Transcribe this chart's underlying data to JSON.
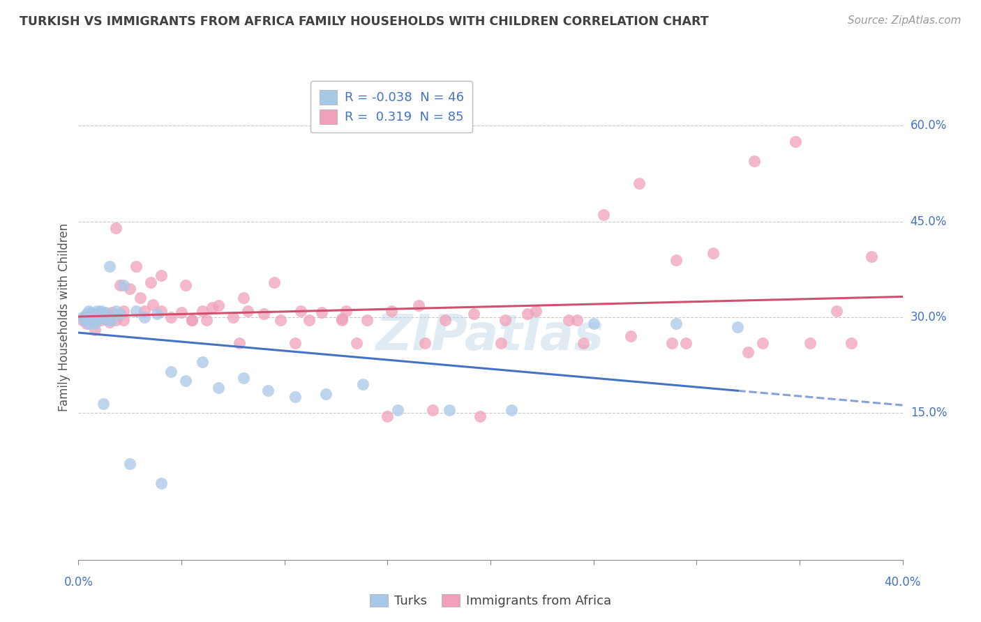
{
  "title": "TURKISH VS IMMIGRANTS FROM AFRICA FAMILY HOUSEHOLDS WITH CHILDREN CORRELATION CHART",
  "source": "Source: ZipAtlas.com",
  "ylabel": "Family Households with Children",
  "yticks_labels": [
    "60.0%",
    "45.0%",
    "30.0%",
    "15.0%"
  ],
  "ytick_vals": [
    0.6,
    0.45,
    0.3,
    0.15
  ],
  "xtick_labels_bottom": [
    "0.0%",
    "40.0%"
  ],
  "xtick_vals_bottom": [
    0.0,
    0.4
  ],
  "xlim": [
    0.0,
    0.4
  ],
  "ylim": [
    -0.08,
    0.68
  ],
  "turks_R": -0.038,
  "turks_N": 46,
  "africa_R": 0.319,
  "africa_N": 85,
  "turks_color": "#a8c8e8",
  "africa_color": "#f0a0b8",
  "turks_line_color": "#4472c4",
  "africa_line_color": "#d05070",
  "turks_line_alpha": 1.0,
  "africa_line_alpha": 1.0,
  "legend_label_turks": "Turks",
  "legend_label_africa": "Immigrants from Africa",
  "watermark": "ZIPatlas",
  "background_color": "#ffffff",
  "grid_color": "#c8c8c8",
  "title_color": "#404040",
  "axis_label_color": "#4472c4",
  "turks_x": [
    0.002,
    0.003,
    0.004,
    0.004,
    0.005,
    0.005,
    0.006,
    0.006,
    0.006,
    0.007,
    0.007,
    0.008,
    0.008,
    0.009,
    0.01,
    0.01,
    0.011,
    0.012,
    0.013,
    0.014,
    0.015,
    0.016,
    0.018,
    0.02,
    0.022,
    0.028,
    0.032,
    0.038,
    0.045,
    0.052,
    0.06,
    0.068,
    0.08,
    0.092,
    0.105,
    0.12,
    0.138,
    0.155,
    0.18,
    0.21,
    0.25,
    0.29,
    0.32,
    0.012,
    0.025,
    0.04
  ],
  "turks_y": [
    0.3,
    0.295,
    0.298,
    0.305,
    0.29,
    0.31,
    0.295,
    0.302,
    0.308,
    0.3,
    0.295,
    0.305,
    0.29,
    0.31,
    0.298,
    0.305,
    0.31,
    0.3,
    0.308,
    0.295,
    0.38,
    0.295,
    0.31,
    0.305,
    0.35,
    0.31,
    0.3,
    0.305,
    0.215,
    0.2,
    0.23,
    0.19,
    0.205,
    0.185,
    0.175,
    0.18,
    0.195,
    0.155,
    0.155,
    0.155,
    0.29,
    0.29,
    0.285,
    0.165,
    0.07,
    0.04
  ],
  "africa_x": [
    0.002,
    0.003,
    0.004,
    0.005,
    0.006,
    0.007,
    0.008,
    0.009,
    0.01,
    0.011,
    0.012,
    0.013,
    0.014,
    0.015,
    0.016,
    0.018,
    0.02,
    0.022,
    0.025,
    0.028,
    0.032,
    0.036,
    0.04,
    0.045,
    0.05,
    0.055,
    0.06,
    0.068,
    0.075,
    0.082,
    0.09,
    0.098,
    0.108,
    0.118,
    0.128,
    0.14,
    0.152,
    0.165,
    0.178,
    0.192,
    0.207,
    0.222,
    0.238,
    0.255,
    0.272,
    0.29,
    0.308,
    0.328,
    0.348,
    0.368,
    0.008,
    0.015,
    0.022,
    0.03,
    0.04,
    0.052,
    0.065,
    0.08,
    0.095,
    0.112,
    0.13,
    0.15,
    0.172,
    0.195,
    0.218,
    0.242,
    0.268,
    0.295,
    0.325,
    0.355,
    0.385,
    0.018,
    0.035,
    0.055,
    0.078,
    0.105,
    0.135,
    0.168,
    0.205,
    0.245,
    0.288,
    0.332,
    0.375,
    0.062,
    0.128
  ],
  "africa_y": [
    0.295,
    0.3,
    0.29,
    0.305,
    0.298,
    0.302,
    0.295,
    0.3,
    0.308,
    0.295,
    0.302,
    0.298,
    0.305,
    0.292,
    0.308,
    0.44,
    0.35,
    0.31,
    0.345,
    0.38,
    0.31,
    0.32,
    0.31,
    0.3,
    0.308,
    0.295,
    0.31,
    0.318,
    0.3,
    0.31,
    0.305,
    0.295,
    0.31,
    0.308,
    0.298,
    0.295,
    0.31,
    0.318,
    0.295,
    0.305,
    0.295,
    0.31,
    0.295,
    0.46,
    0.51,
    0.39,
    0.4,
    0.545,
    0.575,
    0.31,
    0.28,
    0.3,
    0.295,
    0.33,
    0.365,
    0.35,
    0.315,
    0.33,
    0.355,
    0.295,
    0.31,
    0.145,
    0.155,
    0.145,
    0.305,
    0.295,
    0.27,
    0.26,
    0.245,
    0.26,
    0.395,
    0.295,
    0.355,
    0.295,
    0.26,
    0.26,
    0.26,
    0.26,
    0.26,
    0.26,
    0.26,
    0.26,
    0.26,
    0.295,
    0.295
  ]
}
